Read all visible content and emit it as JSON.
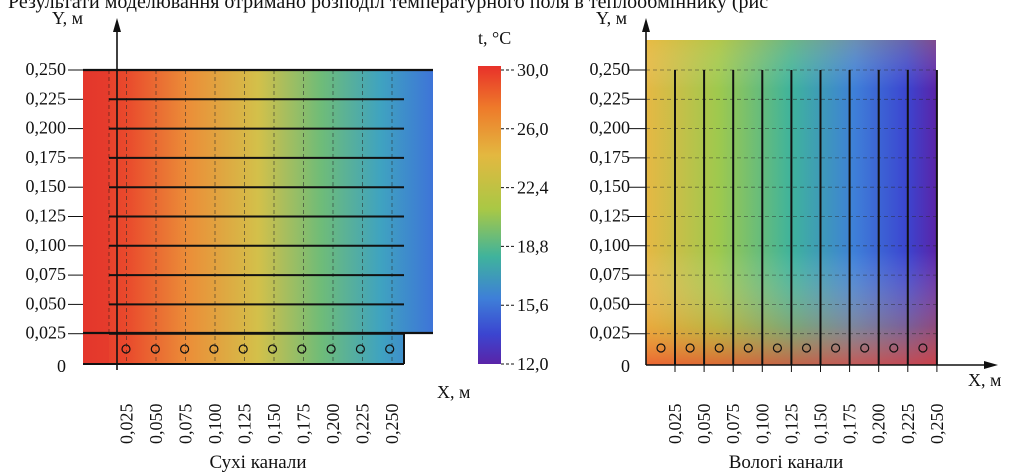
{
  "top_text": "Результати моделювання отримано розподіл температурного поля в теплообміннику (рис",
  "colorbar": {
    "title": "t, °C",
    "ticks": [
      "30,0",
      "26,0",
      "22,4",
      "18,8",
      "15,6",
      "12,0"
    ],
    "gradient_colors": [
      "#e8312a",
      "#ee7a2a",
      "#e3b840",
      "#a9c845",
      "#3fb39c",
      "#3e7fd8",
      "#3b45d0",
      "#5a24a8"
    ]
  },
  "chart_data": [
    {
      "type": "heatmap",
      "title": "",
      "caption": "Сухі канали",
      "xlabel": "X, м",
      "ylabel": "Y, м",
      "x_ticks": [
        "0,025",
        "0,050",
        "0,075",
        "0,100",
        "0,125",
        "0,150",
        "0,175",
        "0,200",
        "0,225",
        "0,250"
      ],
      "y_ticks": [
        "0,250",
        "0,225",
        "0,200",
        "0,175",
        "0,150",
        "0,125",
        "0,100",
        "0,075",
        "0,050",
        "0,025",
        "0"
      ],
      "temperature_range_c": [
        12.0,
        30.0
      ],
      "temperature_gradient": "decreasing from left (~30,0 °C) to right (~15,6 °C)",
      "channels": "horizontal",
      "channel_count": 10,
      "markers_count": 10
    },
    {
      "type": "heatmap",
      "title": "",
      "caption": "Вологі канали",
      "xlabel": "X, м",
      "ylabel": "Y, м",
      "x_ticks": [
        "0,025",
        "0,050",
        "0,075",
        "0,100",
        "0,125",
        "0,150",
        "0,175",
        "0,200",
        "0,225",
        "0,250"
      ],
      "y_ticks": [
        "0,250",
        "0,225",
        "0,200",
        "0,175",
        "0,150",
        "0,125",
        "0,100",
        "0,075",
        "0,050",
        "0,025",
        "0"
      ],
      "temperature_range_c": [
        12.0,
        30.0
      ],
      "temperature_gradient": "decreasing from bottom-left (~30,0 °C) to top-right (~12,0 °C)",
      "channels": "vertical",
      "channel_count": 10,
      "markers_count": 10
    }
  ]
}
